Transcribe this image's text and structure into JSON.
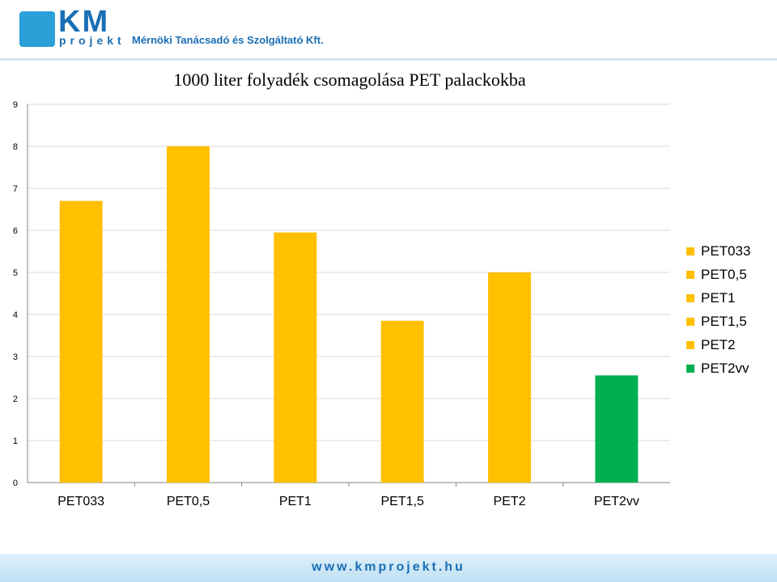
{
  "header": {
    "logo_text": "KM",
    "logo_sub": "projekt",
    "tagline": "Mérnöki Tanácsadó és Szolgáltató Kft."
  },
  "footer": {
    "url": "www.kmprojekt.hu"
  },
  "colors": {
    "bar_default": "#FFC000",
    "bar_highlight": "#00B050",
    "grid": "#D9D9D9",
    "axis": "#868686"
  },
  "chart_data": {
    "type": "bar",
    "title": "1000 liter folyadék csomagolása PET palackokba",
    "categories": [
      "PET033",
      "PET0,5",
      "PET1",
      "PET1,5",
      "PET2",
      "PET2vv"
    ],
    "values": [
      6.7,
      8.0,
      5.95,
      3.85,
      5.0,
      2.55
    ],
    "bar_colors": [
      "#FFC000",
      "#FFC000",
      "#FFC000",
      "#FFC000",
      "#FFC000",
      "#00B050"
    ],
    "ylim": [
      0,
      9
    ],
    "yticks": [
      "0",
      "1",
      "2",
      "3",
      "4",
      "5",
      "6",
      "7",
      "8",
      "9"
    ],
    "grid": true,
    "legend_position": "right",
    "legend": [
      {
        "label": "PET033",
        "color": "#FFC000"
      },
      {
        "label": "PET0,5",
        "color": "#FFC000"
      },
      {
        "label": "PET1",
        "color": "#FFC000"
      },
      {
        "label": "PET1,5",
        "color": "#FFC000"
      },
      {
        "label": "PET2",
        "color": "#FFC000"
      },
      {
        "label": "PET2vv",
        "color": "#00B050"
      }
    ]
  }
}
